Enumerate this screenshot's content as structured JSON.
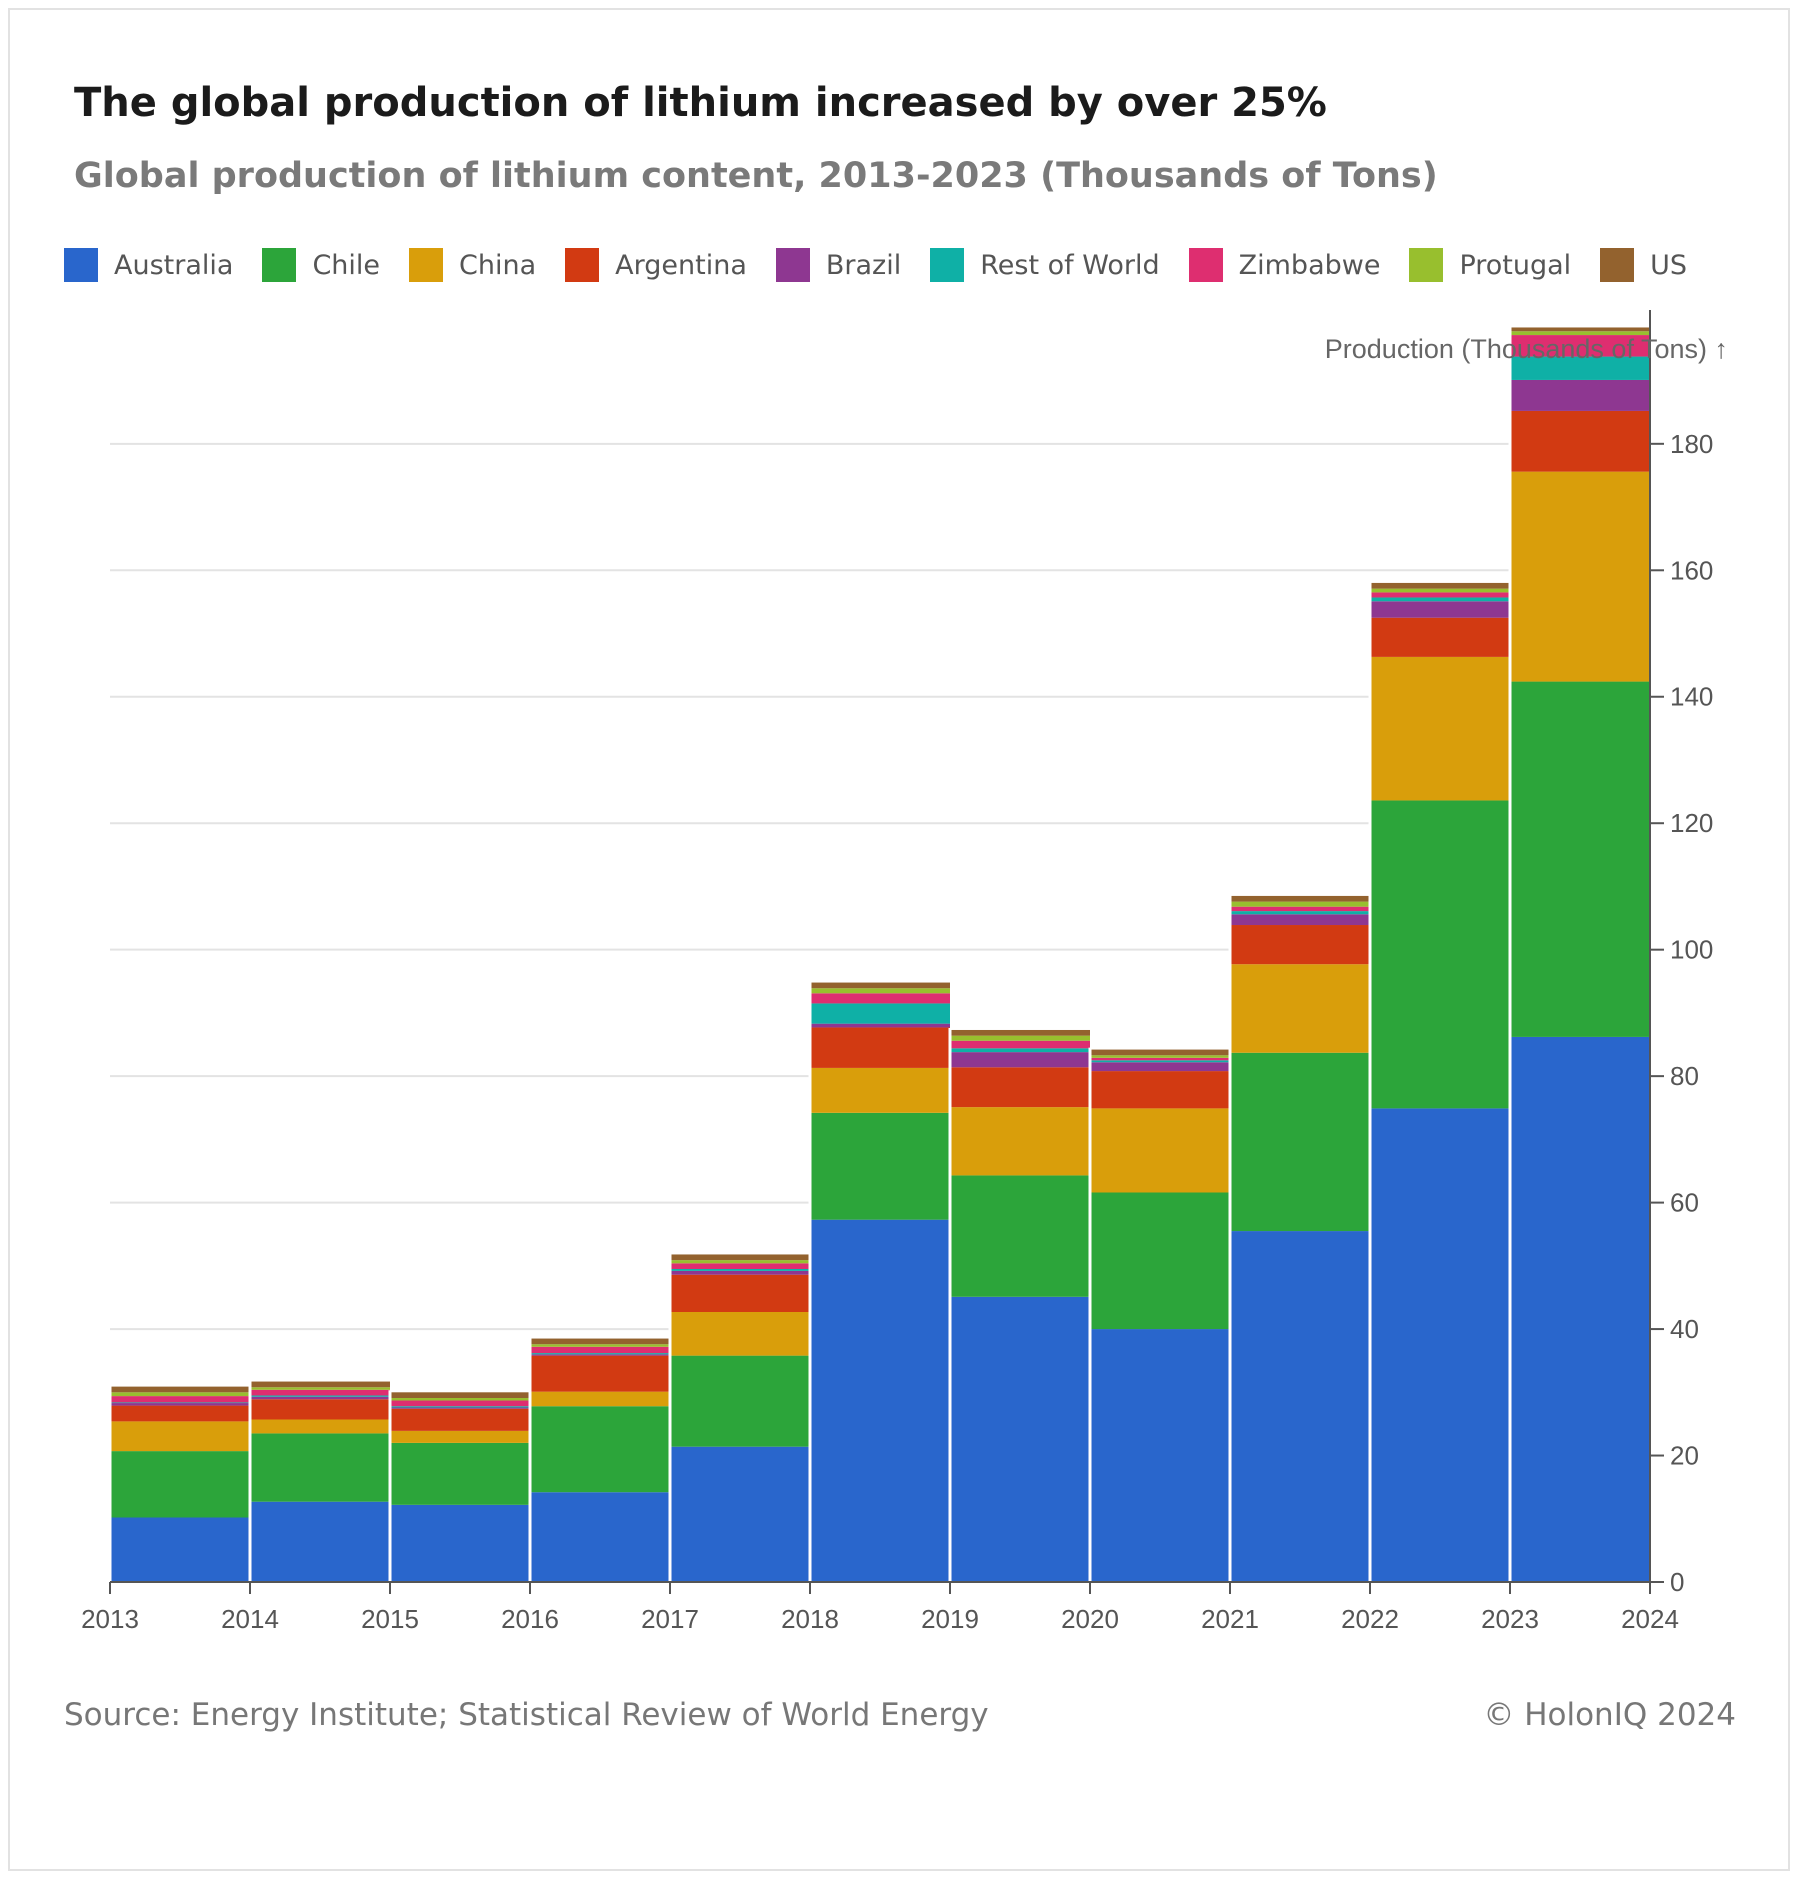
{
  "header": {
    "title": "The global production of lithium increased by over 25%",
    "subtitle": "Global production of lithium content, 2013-2023 (Thousands of Tons)"
  },
  "footer": {
    "source": "Source: Energy Institute; Statistical Review of World Energy",
    "credit": "© HolonIQ 2024"
  },
  "chart_data": {
    "type": "bar",
    "stacked": true,
    "ylabel": "Production (Thousands of Tons) ↑",
    "ylim": [
      0,
      198
    ],
    "yticks": [
      0,
      20,
      40,
      60,
      80,
      100,
      120,
      140,
      160,
      180
    ],
    "x_ticks": [
      "2013",
      "2014",
      "2015",
      "2016",
      "2017",
      "2018",
      "2019",
      "2020",
      "2021",
      "2022",
      "2023",
      "2024"
    ],
    "categories": [
      2013,
      2014,
      2015,
      2016,
      2017,
      2018,
      2019,
      2020,
      2021,
      2022,
      2023
    ],
    "grid": true,
    "legend_position": "top-left",
    "y_axis_side": "right",
    "series": [
      {
        "name": "Australia",
        "color": "#2966cc",
        "values": [
          10.2,
          12.7,
          12.2,
          14.2,
          21.4,
          57.3,
          45.1,
          40.0,
          55.5,
          74.9,
          86.2
        ]
      },
      {
        "name": "Chile",
        "color": "#2ca53a",
        "values": [
          10.5,
          10.8,
          9.8,
          13.6,
          14.4,
          16.9,
          19.2,
          21.6,
          28.2,
          48.7,
          56.2
        ]
      },
      {
        "name": "China",
        "color": "#d99e0b",
        "values": [
          4.7,
          2.2,
          1.9,
          2.3,
          6.9,
          7.1,
          10.8,
          13.3,
          14.0,
          22.7,
          33.2
        ]
      },
      {
        "name": "Argentina",
        "color": "#d23a12",
        "values": [
          2.5,
          3.2,
          3.5,
          5.7,
          5.9,
          6.4,
          6.3,
          5.9,
          6.2,
          6.2,
          9.6
        ]
      },
      {
        "name": "Brazil",
        "color": "#8e3791",
        "values": [
          0.4,
          0.4,
          0.2,
          0.2,
          0.6,
          0.6,
          2.4,
          1.4,
          1.7,
          2.6,
          4.9
        ]
      },
      {
        "name": "Rest of World",
        "color": "#0fb0a6",
        "values": [
          0.1,
          0.2,
          0.2,
          0.2,
          0.3,
          3.2,
          0.6,
          0.3,
          0.5,
          0.6,
          3.7
        ]
      },
      {
        "name": "Zimbabwe",
        "color": "#de2e70",
        "values": [
          1.0,
          0.9,
          0.9,
          1.0,
          0.9,
          1.6,
          1.2,
          0.4,
          0.7,
          0.8,
          3.4
        ]
      },
      {
        "name": "Protugal",
        "color": "#98bf2e",
        "values": [
          0.6,
          0.4,
          0.4,
          0.4,
          0.5,
          0.8,
          0.8,
          0.4,
          0.8,
          0.6,
          0.6
        ]
      },
      {
        "name": "US",
        "color": "#93622e",
        "values": [
          0.9,
          0.9,
          0.9,
          0.9,
          0.9,
          0.9,
          0.9,
          0.9,
          0.9,
          0.9,
          0.6
        ]
      }
    ]
  }
}
